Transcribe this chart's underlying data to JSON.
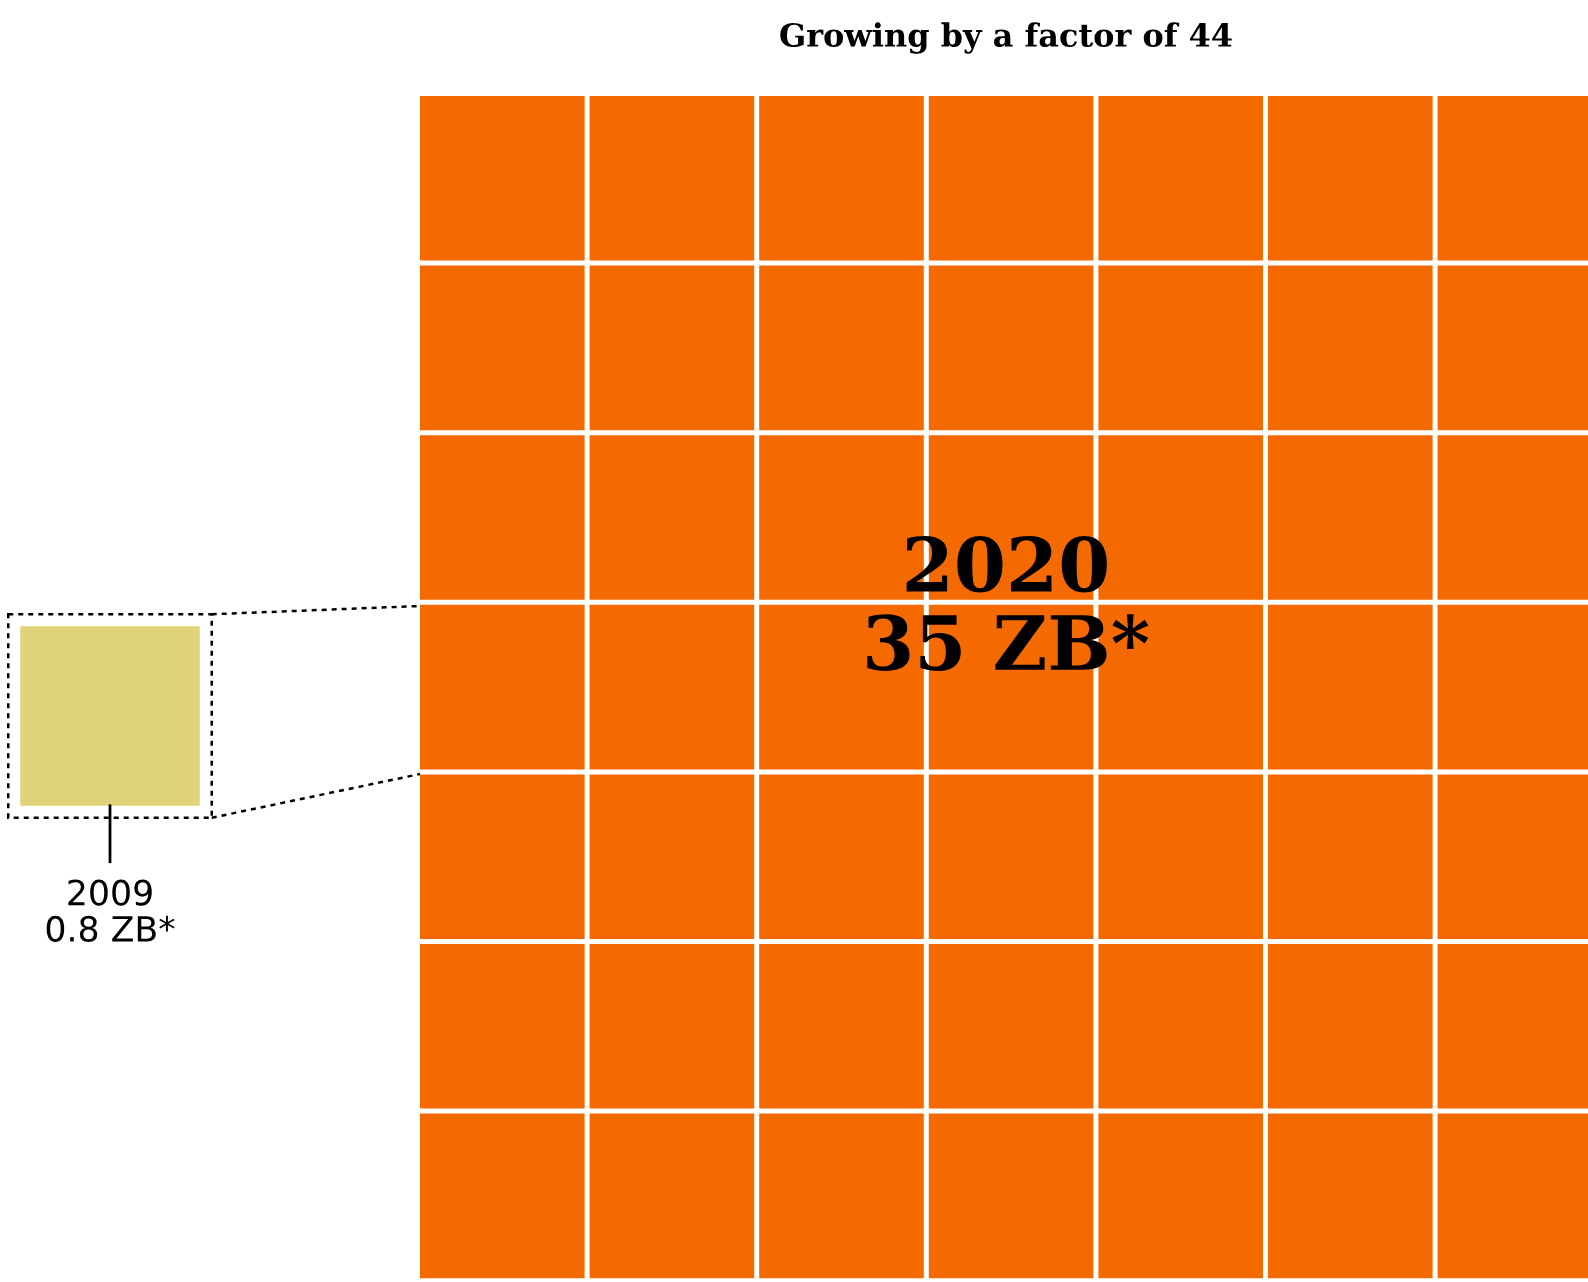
{
  "chart_data": {
    "type": "other",
    "title": "Growing by a factor of 44",
    "categories": [
      "2009",
      "2020"
    ],
    "values": [
      0.8,
      35
    ],
    "value_labels": [
      "0.8 ZB*",
      "35 ZB*"
    ],
    "colors": [
      "#e0d47a",
      "#f56a00"
    ]
  }
}
